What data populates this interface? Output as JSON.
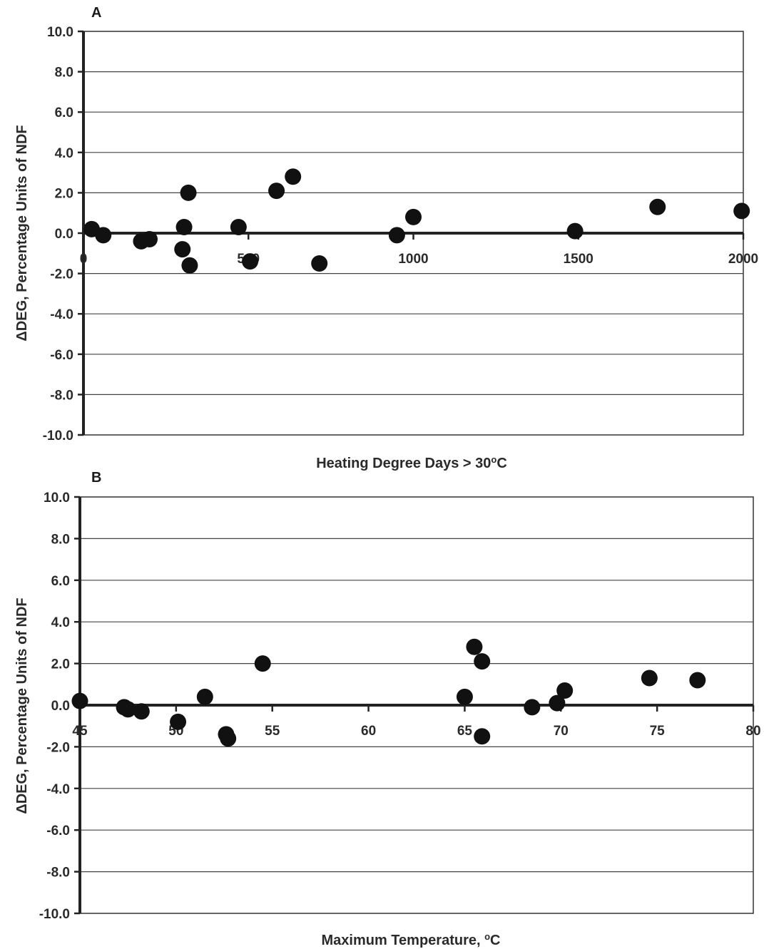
{
  "chart_data": [
    {
      "type": "scatter",
      "panel_label": "A",
      "xlabel": "Heating Degree Days > 30",
      "xlabel_sup": "o",
      "xlabel_suffix": "C",
      "ylabel": "ΔDEG, Percentage Units of NDF",
      "xlim": [
        0,
        2000
      ],
      "ylim": [
        -10,
        10
      ],
      "xticks": [
        "0",
        "500",
        "1000",
        "1500",
        "2000"
      ],
      "xtick_values": [
        0,
        500,
        1000,
        1500,
        2000
      ],
      "yticks": [
        "10.0",
        "8.0",
        "6.0",
        "4.0",
        "2.0",
        "0.0",
        "-2.0",
        "-4.0",
        "-6.0",
        "-8.0",
        "-10.0"
      ],
      "ytick_values": [
        10,
        8,
        6,
        4,
        2,
        0,
        -2,
        -4,
        -6,
        -8,
        -10
      ],
      "grid": true,
      "point_color": "#111111",
      "points": [
        {
          "x": 25,
          "y": 0.2
        },
        {
          "x": 60,
          "y": -0.1
        },
        {
          "x": 175,
          "y": -0.4
        },
        {
          "x": 200,
          "y": -0.3
        },
        {
          "x": 300,
          "y": -0.8
        },
        {
          "x": 305,
          "y": 0.3
        },
        {
          "x": 318,
          "y": 2.0
        },
        {
          "x": 322,
          "y": -1.6
        },
        {
          "x": 470,
          "y": 0.3
        },
        {
          "x": 505,
          "y": -1.4
        },
        {
          "x": 585,
          "y": 2.1
        },
        {
          "x": 635,
          "y": 2.8
        },
        {
          "x": 715,
          "y": -1.5
        },
        {
          "x": 950,
          "y": -0.1
        },
        {
          "x": 1000,
          "y": 0.8
        },
        {
          "x": 1490,
          "y": 0.1
        },
        {
          "x": 1740,
          "y": 1.3
        },
        {
          "x": 1995,
          "y": 1.1
        }
      ]
    },
    {
      "type": "scatter",
      "panel_label": "B",
      "xlabel": "Maximum Temperature, ",
      "xlabel_sup": "o",
      "xlabel_suffix": "C",
      "ylabel": "ΔDEG, Percentage Units of NDF",
      "xlim": [
        45,
        80
      ],
      "ylim": [
        -10,
        10
      ],
      "xticks": [
        "45",
        "50",
        "55",
        "60",
        "65",
        "70",
        "75",
        "80"
      ],
      "xtick_values": [
        45,
        50,
        55,
        60,
        65,
        70,
        75,
        80
      ],
      "yticks": [
        "10.0",
        "8.0",
        "6.0",
        "4.0",
        "2.0",
        "0.0",
        "-2.0",
        "-4.0",
        "-6.0",
        "-8.0",
        "-10.0"
      ],
      "ytick_values": [
        10,
        8,
        6,
        4,
        2,
        0,
        -2,
        -4,
        -6,
        -8,
        -10
      ],
      "grid": true,
      "point_color": "#111111",
      "points": [
        {
          "x": 45.0,
          "y": 0.2
        },
        {
          "x": 47.3,
          "y": -0.1
        },
        {
          "x": 47.5,
          "y": -0.2
        },
        {
          "x": 48.2,
          "y": -0.3
        },
        {
          "x": 50.1,
          "y": -0.8
        },
        {
          "x": 51.5,
          "y": 0.4
        },
        {
          "x": 52.6,
          "y": -1.4
        },
        {
          "x": 52.7,
          "y": -1.6
        },
        {
          "x": 54.5,
          "y": 2.0
        },
        {
          "x": 65.0,
          "y": 0.4
        },
        {
          "x": 65.5,
          "y": 2.8
        },
        {
          "x": 65.9,
          "y": 2.1
        },
        {
          "x": 65.9,
          "y": -1.5
        },
        {
          "x": 68.5,
          "y": -0.1
        },
        {
          "x": 69.8,
          "y": 0.1
        },
        {
          "x": 70.2,
          "y": 0.7
        },
        {
          "x": 74.6,
          "y": 1.3
        },
        {
          "x": 77.1,
          "y": 1.2
        }
      ]
    }
  ]
}
